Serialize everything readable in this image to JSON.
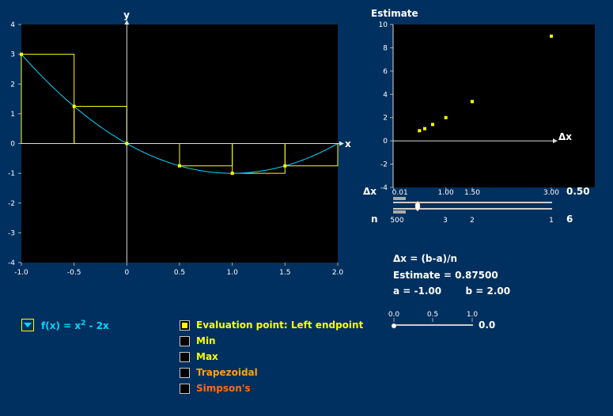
{
  "main_graph": {
    "y_axis_label": "y",
    "x_axis_label": "x",
    "x_ticks": [
      "-1.0",
      "-0.5",
      "0",
      "0.5",
      "1.0",
      "1.5",
      "2.0"
    ],
    "y_ticks": [
      "4",
      "3",
      "2",
      "1",
      "0",
      "-1",
      "-2",
      "-3",
      "-4"
    ]
  },
  "estimate_graph": {
    "title": "Estimate",
    "x_axis_label": "Δx",
    "y_ticks": [
      "10",
      "8",
      "6",
      "4",
      "2",
      "0",
      "-2",
      "-4"
    ],
    "x_ticks": [
      "0.01",
      "1.00",
      "1.50",
      "3.00"
    ]
  },
  "dx_slider": {
    "label": "Δx",
    "value": "0.50"
  },
  "n_slider": {
    "label": "n",
    "ticks": [
      "500",
      "3",
      "2",
      "1"
    ],
    "value": "6"
  },
  "formula": {
    "dx_def": "Δx = (b-a)/n",
    "estimate": "Estimate = 0.87500",
    "a_text": "a = -1.00",
    "b_text": "b = 2.00"
  },
  "eval_slider": {
    "ticks": [
      "0.0",
      "0.5",
      "1.0"
    ],
    "value": "0.0"
  },
  "function_selector": {
    "label": "f(x) = x",
    "exponent": "2",
    "rest": " - 2x"
  },
  "options": [
    {
      "label": "Evaluation point: Left endpoint",
      "color": "#ffff00",
      "checked": true
    },
    {
      "label": "Min",
      "color": "#ffff00",
      "checked": false
    },
    {
      "label": "Max",
      "color": "#ffff00",
      "checked": false
    },
    {
      "label": "Trapezoidal",
      "color": "#ff9f1a",
      "checked": false
    },
    {
      "label": "Simpson's",
      "color": "#ff6a1a",
      "checked": false
    }
  ],
  "chart_data": [
    {
      "type": "line",
      "function": "x^2 - 2x",
      "xlim": [
        -1,
        2
      ],
      "ylim": [
        -4,
        4
      ],
      "a": -1,
      "b": 2,
      "n": 6,
      "rectangles": [
        {
          "x0": -1.0,
          "x1": -0.5,
          "height": 3
        },
        {
          "x0": -0.5,
          "x1": 0.0,
          "height": 1.25
        },
        {
          "x0": 0.0,
          "x1": 0.5,
          "height": 0
        },
        {
          "x0": 0.5,
          "x1": 1.0,
          "height": -0.75
        },
        {
          "x0": 1.0,
          "x1": 1.5,
          "height": -1
        },
        {
          "x0": 1.5,
          "x1": 2.0,
          "height": -0.75
        }
      ],
      "points": [
        {
          "x": -1.0,
          "y": 3
        },
        {
          "x": -0.5,
          "y": 1.25
        },
        {
          "x": 0.0,
          "y": 0
        },
        {
          "x": 0.5,
          "y": -0.75
        },
        {
          "x": 1.0,
          "y": -1
        },
        {
          "x": 1.5,
          "y": -0.75
        }
      ],
      "colors": {
        "curve": "#00d8ff",
        "rects": "#ffff00"
      }
    },
    {
      "type": "scatter",
      "title": "Estimate",
      "xlabel": "Δx",
      "xlim": [
        0.01,
        3.0
      ],
      "ylim": [
        -4,
        10
      ],
      "points": [
        {
          "x": 0.5,
          "y": 0.875
        },
        {
          "x": 0.6,
          "y": 1.05
        },
        {
          "x": 0.75,
          "y": 1.41
        },
        {
          "x": 1.0,
          "y": 2.0
        },
        {
          "x": 1.5,
          "y": 3.38
        },
        {
          "x": 3.0,
          "y": 9.0
        }
      ],
      "color": "#ffff00"
    }
  ]
}
